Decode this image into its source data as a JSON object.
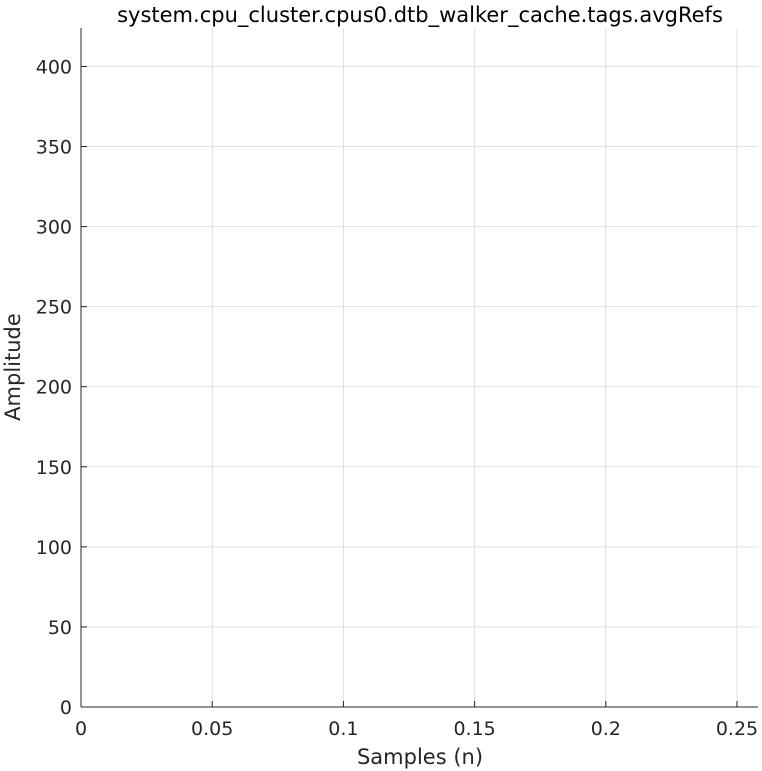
{
  "chart_data": {
    "type": "line",
    "title": "system.cpu_cluster.cpus0.dtb_walker_cache.tags.avgRefs",
    "xlabel": "Samples (n)",
    "ylabel": "Amplitude",
    "xlim": [
      0,
      0.258
    ],
    "ylim": [
      0,
      424
    ],
    "xticks": [
      0,
      0.05,
      0.1,
      0.15,
      0.2,
      0.25
    ],
    "xtick_labels": [
      "0",
      "0.05",
      "0.1",
      "0.15",
      "0.2",
      "0.25"
    ],
    "yticks": [
      0,
      50,
      100,
      150,
      200,
      250,
      300,
      350,
      400
    ],
    "ytick_labels": [
      "0",
      "50",
      "100",
      "150",
      "200",
      "250",
      "300",
      "350",
      "400"
    ],
    "grid": true,
    "series": []
  },
  "colors": {
    "grid": "#dfdfdf",
    "axis": "#262626",
    "tick_text": "#262626"
  }
}
